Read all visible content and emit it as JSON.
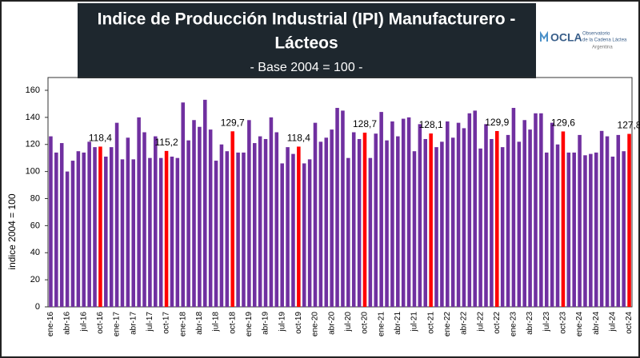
{
  "chart_data": {
    "type": "bar",
    "title": [
      "Indice de Producción Industrial (IPI) Manufacturero -",
      "Lácteos"
    ],
    "subtitle": "- Base 2004 = 100 -",
    "logo": {
      "name": "OCLA",
      "line1": "Observatorio",
      "line2": "de la Cadena Láctea",
      "line3": "Argentina"
    },
    "y_label": "indice 2004 = 100",
    "categories": [
      "ene-16",
      null,
      null,
      "abr-16",
      null,
      null,
      "jul-16",
      null,
      null,
      "oct-16",
      null,
      null,
      "ene-17",
      null,
      null,
      "abr-17",
      null,
      null,
      "jul-17",
      null,
      null,
      "oct-17",
      null,
      null,
      "ene-18",
      null,
      null,
      "abr-18",
      null,
      null,
      "jul-18",
      null,
      null,
      "oct-18",
      null,
      null,
      "ene-19",
      null,
      null,
      "abr-19",
      null,
      null,
      "jul-19",
      null,
      null,
      "oct-19",
      null,
      null,
      "ene-20",
      null,
      null,
      "abr-20",
      null,
      null,
      "jul-20",
      null,
      null,
      "oct-20",
      null,
      null,
      "ene-21",
      null,
      null,
      "abr-21",
      null,
      null,
      "jul-21",
      null,
      null,
      "oct-21",
      null,
      null,
      "ene-22",
      null,
      null,
      "abr-22",
      null,
      null,
      "jul-22",
      null,
      null,
      "oct-22",
      null,
      null,
      "ene-23",
      null,
      null,
      "abr-23",
      null,
      null,
      "jul-23",
      null,
      null,
      "oct-23",
      null,
      null,
      "ene-24",
      null,
      null,
      "abr-24",
      null,
      null,
      "jul-24",
      null,
      null,
      "oct-24"
    ],
    "values": [
      126,
      114,
      121,
      100,
      108,
      115,
      114,
      122,
      118,
      118.4,
      111,
      118,
      136,
      109,
      125,
      109,
      140,
      129,
      110,
      126,
      110,
      115.2,
      111,
      110,
      151,
      123,
      138,
      133,
      153,
      131,
      108,
      120,
      115,
      129.7,
      114,
      114,
      138,
      121,
      126,
      124,
      140,
      129,
      106,
      118,
      113,
      118.4,
      106,
      109,
      136,
      122,
      125,
      131,
      147,
      145,
      110,
      129,
      124,
      128.7,
      110,
      128,
      144,
      123,
      137,
      126,
      139,
      140,
      115,
      135,
      124,
      128.1,
      118,
      122,
      137,
      125,
      136,
      132,
      143,
      145,
      117,
      135,
      124,
      129.9,
      118,
      127,
      147,
      122,
      138,
      131,
      143,
      143,
      114,
      136,
      120,
      129.6,
      114,
      114,
      127,
      112,
      113,
      114,
      130,
      126,
      111,
      127,
      115,
      127.8
    ],
    "value_labels": [
      null,
      null,
      null,
      null,
      null,
      null,
      null,
      null,
      null,
      "118,4",
      null,
      null,
      null,
      null,
      null,
      null,
      null,
      null,
      null,
      null,
      null,
      "115,2",
      null,
      null,
      null,
      null,
      null,
      null,
      null,
      null,
      null,
      null,
      null,
      "129,7",
      null,
      null,
      null,
      null,
      null,
      null,
      null,
      null,
      null,
      null,
      null,
      "118,4",
      null,
      null,
      null,
      null,
      null,
      null,
      null,
      null,
      null,
      null,
      null,
      "128,7",
      null,
      null,
      null,
      null,
      null,
      null,
      null,
      null,
      null,
      null,
      null,
      "128,1",
      null,
      null,
      null,
      null,
      null,
      null,
      null,
      null,
      null,
      null,
      null,
      "129,9",
      null,
      null,
      null,
      null,
      null,
      null,
      null,
      null,
      null,
      null,
      null,
      "129,6",
      null,
      null,
      null,
      null,
      null,
      null,
      null,
      null,
      null,
      null,
      null,
      "127,8"
    ],
    "colors": [
      "#7030a0",
      "#7030a0",
      "#7030a0",
      "#7030a0",
      "#7030a0",
      "#7030a0",
      "#7030a0",
      "#7030a0",
      "#7030a0",
      "#ff0000",
      "#7030a0",
      "#7030a0",
      "#7030a0",
      "#7030a0",
      "#7030a0",
      "#7030a0",
      "#7030a0",
      "#7030a0",
      "#7030a0",
      "#7030a0",
      "#7030a0",
      "#ff0000",
      "#7030a0",
      "#7030a0",
      "#7030a0",
      "#7030a0",
      "#7030a0",
      "#7030a0",
      "#7030a0",
      "#7030a0",
      "#7030a0",
      "#7030a0",
      "#7030a0",
      "#ff0000",
      "#7030a0",
      "#7030a0",
      "#7030a0",
      "#7030a0",
      "#7030a0",
      "#7030a0",
      "#7030a0",
      "#7030a0",
      "#7030a0",
      "#7030a0",
      "#7030a0",
      "#ff0000",
      "#7030a0",
      "#7030a0",
      "#7030a0",
      "#7030a0",
      "#7030a0",
      "#7030a0",
      "#7030a0",
      "#7030a0",
      "#7030a0",
      "#7030a0",
      "#7030a0",
      "#ff0000",
      "#7030a0",
      "#7030a0",
      "#7030a0",
      "#7030a0",
      "#7030a0",
      "#7030a0",
      "#7030a0",
      "#7030a0",
      "#7030a0",
      "#7030a0",
      "#7030a0",
      "#ff0000",
      "#7030a0",
      "#7030a0",
      "#7030a0",
      "#7030a0",
      "#7030a0",
      "#7030a0",
      "#7030a0",
      "#7030a0",
      "#7030a0",
      "#7030a0",
      "#7030a0",
      "#ff0000",
      "#7030a0",
      "#7030a0",
      "#7030a0",
      "#7030a0",
      "#7030a0",
      "#7030a0",
      "#7030a0",
      "#7030a0",
      "#7030a0",
      "#7030a0",
      "#7030a0",
      "#ff0000",
      "#7030a0",
      "#7030a0",
      "#7030a0",
      "#7030a0",
      "#7030a0",
      "#7030a0",
      "#7030a0",
      "#7030a0",
      "#7030a0",
      "#7030a0",
      "#7030a0",
      "#ff0000"
    ],
    "ylim": [
      0,
      160
    ],
    "yticks": [
      0,
      20,
      40,
      60,
      80,
      100,
      120,
      140,
      160
    ],
    "grid": false
  }
}
